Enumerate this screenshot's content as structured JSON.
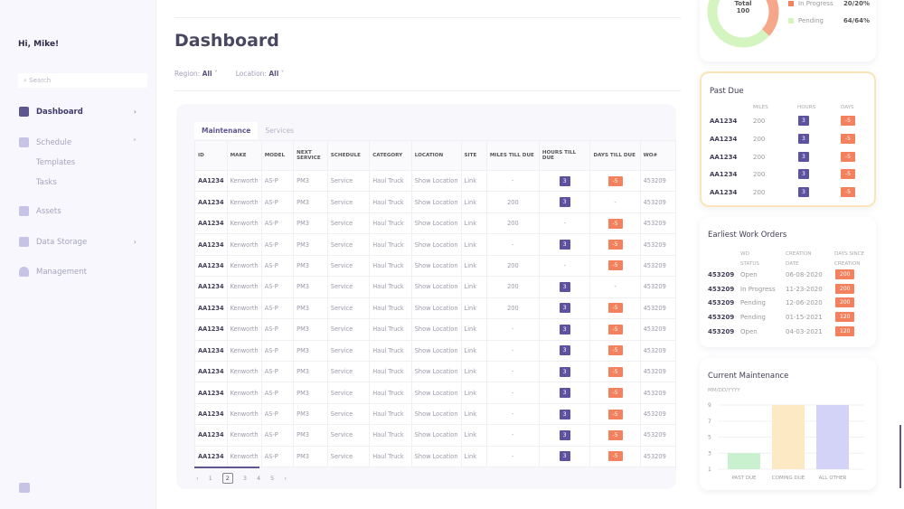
{
  "sidebar": {
    "greeting": "Hi, Mike!",
    "search_placeholder": "Search",
    "items": [
      {
        "label": "Dashboard"
      },
      {
        "label": "Schedule"
      },
      {
        "label": "Assets"
      },
      {
        "label": "Data Storage"
      },
      {
        "label": "Management"
      }
    ],
    "schedule_sub": [
      "Templates",
      "Tasks"
    ]
  },
  "header": {
    "title": "Dashboard",
    "region_label": "Region:",
    "region_value": "All",
    "location_label": "Location:",
    "location_value": "All"
  },
  "tabs": [
    "Maintenance",
    "Services"
  ],
  "table": {
    "columns": [
      "ID",
      "MAKE",
      "MODEL",
      "NEXT SERVICE",
      "SCHEDULE",
      "CATEGORY",
      "LOCATION",
      "SITE",
      "MILES TILL DUE",
      "HOURS TILL DUE",
      "DAYS TILL DUE",
      "WO#"
    ],
    "rows": [
      {
        "miles": "-",
        "hours": "3",
        "days": "-5"
      },
      {
        "miles": "200",
        "hours": "3",
        "days": "-"
      },
      {
        "miles": "200",
        "hours": "-",
        "days": "-5"
      },
      {
        "miles": "-",
        "hours": "3",
        "days": "-5"
      },
      {
        "miles": "200",
        "hours": "-",
        "days": "-5"
      },
      {
        "miles": "200",
        "hours": "3",
        "days": "-"
      },
      {
        "miles": "200",
        "hours": "3",
        "days": "-5"
      },
      {
        "miles": "-",
        "hours": "3",
        "days": "-5"
      },
      {
        "miles": "-",
        "hours": "3",
        "days": "-5"
      },
      {
        "miles": "-",
        "hours": "3",
        "days": "-5"
      },
      {
        "miles": "-",
        "hours": "3",
        "days": "-5"
      },
      {
        "miles": "-",
        "hours": "3",
        "days": "-5"
      },
      {
        "miles": "-",
        "hours": "3",
        "days": "-5"
      },
      {
        "miles": "-",
        "hours": "3",
        "days": "-5"
      }
    ],
    "common": {
      "id": "AA1234",
      "make": "Kenworth",
      "model": "AS-P",
      "next": "PM3",
      "schedule": "Service",
      "category": "Haul Truck",
      "location": "Show Location",
      "site": "Link",
      "wo": "453209"
    }
  },
  "pagination": {
    "pages": [
      "1",
      "2",
      "3",
      "4",
      "5"
    ],
    "current": "2"
  },
  "status_card": {
    "total_label": "Total",
    "total": "100",
    "legend": [
      {
        "label": "In Progress",
        "value": "20/20%",
        "color": "#f4815d"
      },
      {
        "label": "Pending",
        "value": "64/64%",
        "color": "#d4f5c0"
      }
    ]
  },
  "past_due": {
    "title": "Past Due",
    "headers": [
      "MILES",
      "HOURS",
      "DAYS"
    ],
    "rows": [
      {
        "id": "AA1234",
        "miles": "200",
        "hours": "3",
        "days": "-5"
      },
      {
        "id": "AA1234",
        "miles": "200",
        "hours": "3",
        "days": "-5"
      },
      {
        "id": "AA1234",
        "miles": "200",
        "hours": "3",
        "days": "-5"
      },
      {
        "id": "AA1234",
        "miles": "200",
        "hours": "3",
        "days": "-5"
      },
      {
        "id": "AA1234",
        "miles": "200",
        "hours": "3",
        "days": "-5"
      }
    ]
  },
  "work_orders": {
    "title": "Earliest Work Orders",
    "headers": [
      "WO STATUS",
      "CREATION DATE",
      "DAYS SINCE CREATION"
    ],
    "rows": [
      {
        "id": "453209",
        "status": "Open",
        "date": "06-08-2020",
        "days": "200"
      },
      {
        "id": "453209",
        "status": "In Progress",
        "date": "11-23-2020",
        "days": "200"
      },
      {
        "id": "453209",
        "status": "Pending",
        "date": "12-06-2020",
        "days": "200"
      },
      {
        "id": "453209",
        "status": "Pending",
        "date": "01-15-2021",
        "days": "120"
      },
      {
        "id": "453209",
        "status": "Open",
        "date": "04-03-2021",
        "days": "120"
      }
    ]
  },
  "chart_data": {
    "type": "bar",
    "title": "Current Maintenance",
    "subtitle": "MM/DD/YYYY",
    "categories": [
      "PAST DUE",
      "COMING DUE",
      "ALL OTHER"
    ],
    "values": [
      3,
      9,
      9
    ],
    "colors": [
      "#c9f0cf",
      "#fde9c4",
      "#d3d3f7"
    ],
    "yticks": [
      1,
      3,
      5,
      7,
      9
    ],
    "ylim": [
      1,
      9
    ],
    "grid": true
  }
}
